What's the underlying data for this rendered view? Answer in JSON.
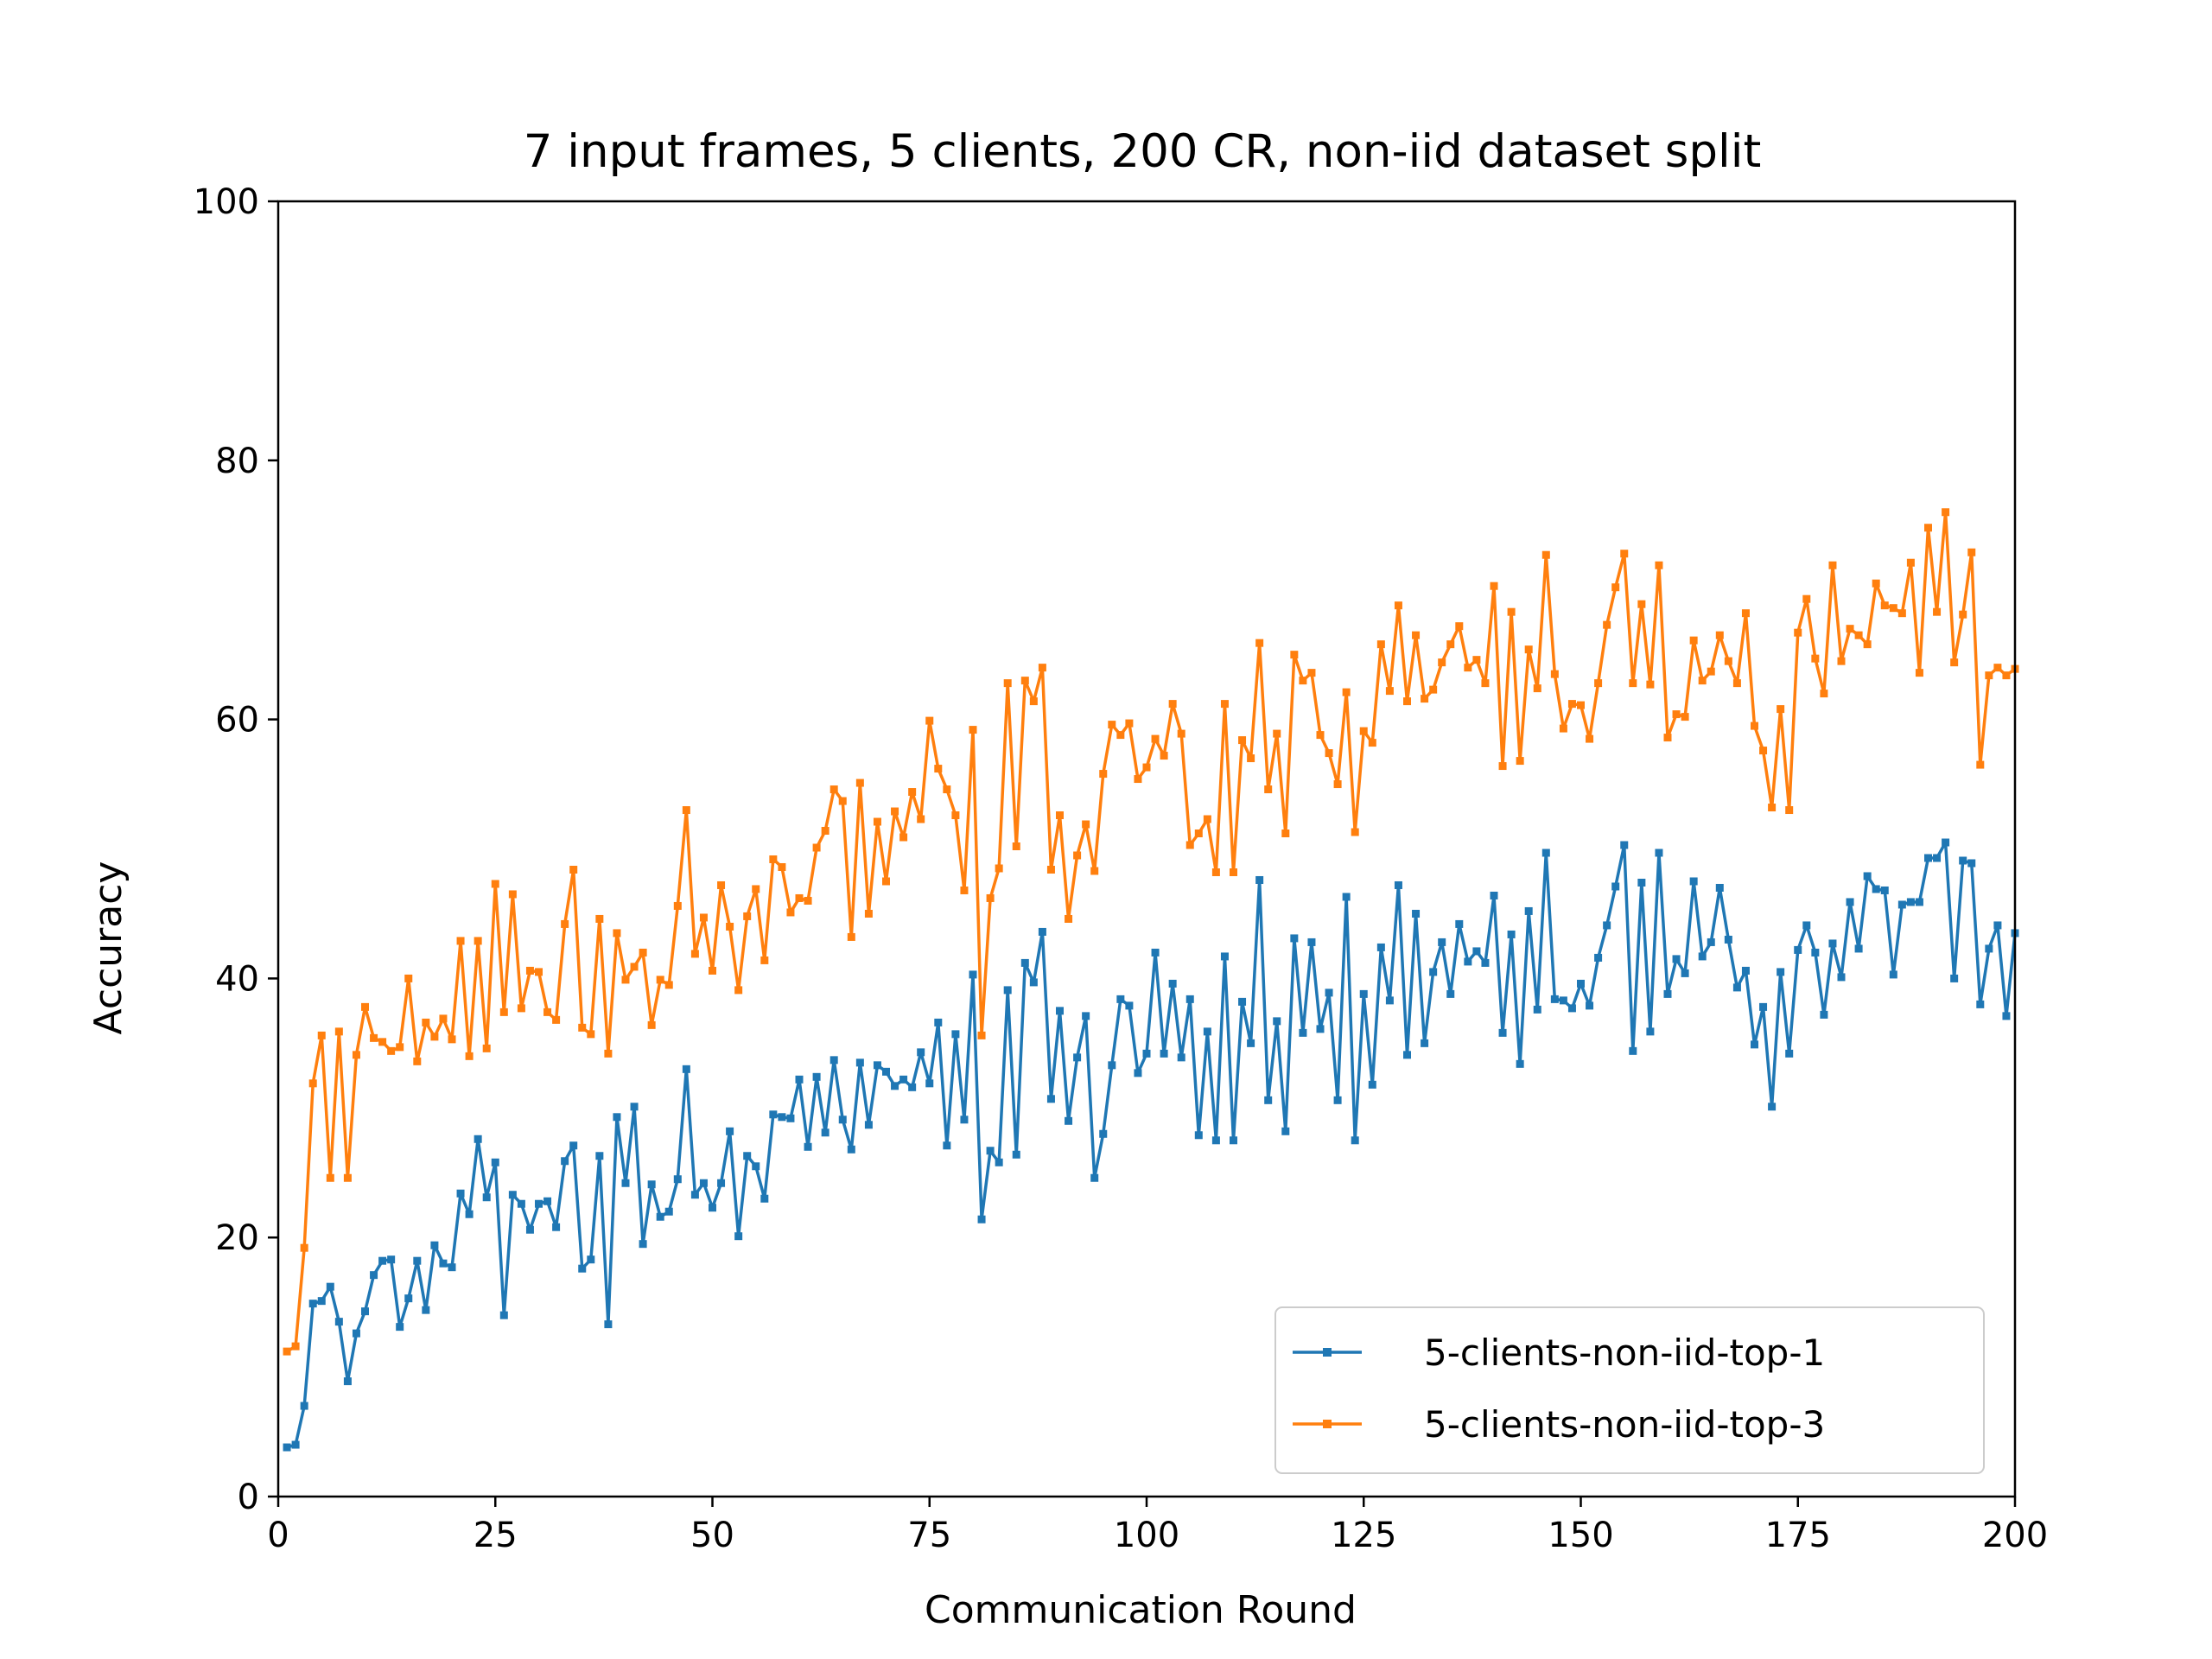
{
  "chart_data": {
    "type": "line",
    "title": "7 input frames, 5 clients, 200 CR, non-iid dataset split",
    "xlabel": "Communication Round",
    "ylabel": "Accuracy",
    "xlim": [
      0,
      200
    ],
    "ylim": [
      0,
      100
    ],
    "xticks": [
      0,
      25,
      50,
      75,
      100,
      125,
      150,
      175,
      200
    ],
    "yticks": [
      0,
      20,
      40,
      60,
      80,
      100
    ],
    "grid": false,
    "legend_position": "lower-right",
    "x_start": 1,
    "series": [
      {
        "name": "5-clients-non-iid-top-1",
        "color": "#1f77b4",
        "values": [
          3.8,
          4.0,
          7.0,
          14.9,
          15.1,
          16.2,
          13.5,
          8.9,
          12.6,
          14.3,
          17.1,
          18.2,
          18.3,
          13.1,
          15.3,
          18.2,
          14.4,
          19.4,
          18.0,
          17.7,
          23.4,
          21.8,
          27.6,
          23.1,
          25.8,
          14.0,
          23.3,
          22.6,
          20.6,
          22.6,
          22.8,
          20.8,
          25.9,
          27.1,
          17.6,
          18.3,
          26.3,
          13.3,
          29.3,
          24.2,
          30.1,
          19.5,
          24.1,
          21.6,
          22.0,
          24.5,
          33.0,
          23.3,
          24.2,
          22.3,
          24.2,
          28.2,
          20.1,
          26.3,
          25.5,
          23.0,
          29.5,
          29.3,
          29.2,
          32.2,
          27.0,
          32.4,
          28.1,
          33.7,
          29.1,
          26.8,
          33.5,
          28.7,
          33.3,
          32.8,
          31.7,
          32.2,
          31.6,
          34.3,
          31.9,
          36.6,
          27.1,
          35.7,
          29.1,
          40.3,
          21.4,
          26.7,
          25.8,
          39.1,
          26.4,
          41.2,
          39.7,
          43.6,
          30.7,
          37.5,
          29.0,
          33.9,
          37.1,
          24.6,
          28.0,
          33.3,
          38.4,
          37.9,
          32.7,
          34.2,
          42.0,
          34.2,
          39.6,
          33.9,
          38.4,
          27.9,
          35.9,
          27.5,
          41.7,
          27.5,
          38.2,
          35.0,
          47.6,
          30.6,
          36.7,
          28.2,
          43.1,
          35.8,
          42.8,
          36.1,
          38.9,
          30.6,
          46.3,
          27.5,
          38.8,
          31.8,
          42.4,
          38.3,
          47.2,
          34.1,
          45.0,
          35.0,
          40.5,
          42.8,
          38.8,
          44.2,
          41.3,
          42.1,
          41.2,
          46.4,
          35.8,
          43.4,
          33.4,
          45.2,
          37.6,
          49.7,
          38.4,
          38.3,
          37.7,
          39.6,
          37.9,
          41.6,
          44.1,
          47.1,
          50.3,
          34.4,
          47.4,
          35.9,
          49.7,
          38.8,
          41.5,
          40.4,
          47.5,
          41.7,
          42.8,
          47.0,
          43.0,
          39.3,
          40.6,
          34.9,
          37.8,
          30.1,
          40.5,
          34.2,
          42.2,
          44.1,
          42.0,
          37.2,
          42.7,
          40.1,
          45.9,
          42.3,
          47.9,
          46.9,
          46.8,
          40.3,
          45.7,
          45.9,
          45.9,
          49.3,
          49.3,
          50.5,
          40.0,
          49.1,
          48.9,
          38.0,
          42.3,
          44.1,
          37.1,
          43.5
        ]
      },
      {
        "name": "5-clients-non-iid-top-3",
        "color": "#ff7f0e",
        "values": [
          11.2,
          11.6,
          19.2,
          31.9,
          35.6,
          24.6,
          35.9,
          24.6,
          34.1,
          37.8,
          35.4,
          35.1,
          34.4,
          34.7,
          40.0,
          33.6,
          36.6,
          35.5,
          36.9,
          35.3,
          42.9,
          34.0,
          42.9,
          34.6,
          47.3,
          37.4,
          46.5,
          37.7,
          40.6,
          40.5,
          37.4,
          36.8,
          44.2,
          48.4,
          36.2,
          35.7,
          44.6,
          34.2,
          43.5,
          39.9,
          40.9,
          42.0,
          36.4,
          39.9,
          39.5,
          45.6,
          53.0,
          41.9,
          44.7,
          40.6,
          47.2,
          44.0,
          39.1,
          44.8,
          46.9,
          41.4,
          49.2,
          48.6,
          45.1,
          46.2,
          46.0,
          50.1,
          51.4,
          54.6,
          53.7,
          43.2,
          55.1,
          45.0,
          52.1,
          47.5,
          52.9,
          50.9,
          54.4,
          52.3,
          59.9,
          56.2,
          54.6,
          52.6,
          46.8,
          59.2,
          35.6,
          46.2,
          48.5,
          62.8,
          50.2,
          63.0,
          61.4,
          64.0,
          48.4,
          52.6,
          44.6,
          49.5,
          51.9,
          48.3,
          55.8,
          59.6,
          58.8,
          59.7,
          55.4,
          56.3,
          58.5,
          57.2,
          61.2,
          58.9,
          50.3,
          51.2,
          52.3,
          48.2,
          61.2,
          48.2,
          58.4,
          57.0,
          65.9,
          54.6,
          58.9,
          51.2,
          65.0,
          63.0,
          63.6,
          58.8,
          57.4,
          55.0,
          62.1,
          51.3,
          59.1,
          58.2,
          65.8,
          62.2,
          68.8,
          61.4,
          66.5,
          61.6,
          62.3,
          64.4,
          65.8,
          67.2,
          64.0,
          64.6,
          62.8,
          70.3,
          56.4,
          68.3,
          56.8,
          65.4,
          62.4,
          72.7,
          63.5,
          59.3,
          61.2,
          61.1,
          58.5,
          62.8,
          67.3,
          70.2,
          72.8,
          62.8,
          68.9,
          62.7,
          71.9,
          58.6,
          60.4,
          60.2,
          66.1,
          63.0,
          63.7,
          66.5,
          64.5,
          62.8,
          68.2,
          59.5,
          57.6,
          53.2,
          60.8,
          53.0,
          66.7,
          69.3,
          64.7,
          62.0,
          71.9,
          64.5,
          67.0,
          66.5,
          65.8,
          70.5,
          68.8,
          68.6,
          68.2,
          72.1,
          63.6,
          74.8,
          68.3,
          76.0,
          64.4,
          68.1,
          72.9,
          56.5,
          63.4,
          64.0,
          63.4,
          63.9
        ]
      }
    ]
  }
}
